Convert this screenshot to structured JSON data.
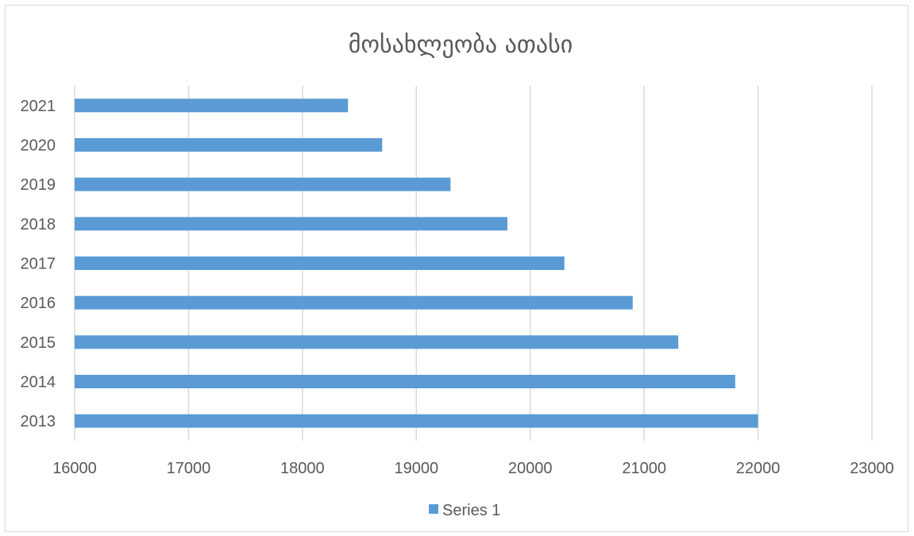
{
  "chart_data": {
    "type": "bar",
    "orientation": "horizontal",
    "title": "მოსახლეობა ათასი",
    "xlabel": "",
    "ylabel": "",
    "categories": [
      "2013",
      "2014",
      "2015",
      "2016",
      "2017",
      "2018",
      "2019",
      "2020",
      "2021"
    ],
    "series": [
      {
        "name": "Series 1",
        "color": "#5b9bd5",
        "values": [
          22000,
          21800,
          21300,
          20900,
          20300,
          19800,
          19300,
          18700,
          18400
        ]
      }
    ],
    "xlim": [
      16000,
      23000
    ],
    "xticks": [
      "16000",
      "17000",
      "18000",
      "19000",
      "20000",
      "21000",
      "22000",
      "23000"
    ],
    "grid": "vertical",
    "legend": "bottom"
  },
  "colors": {
    "bar": "#5b9bd5",
    "grid": "#d9d9d9",
    "text": "#595959"
  }
}
